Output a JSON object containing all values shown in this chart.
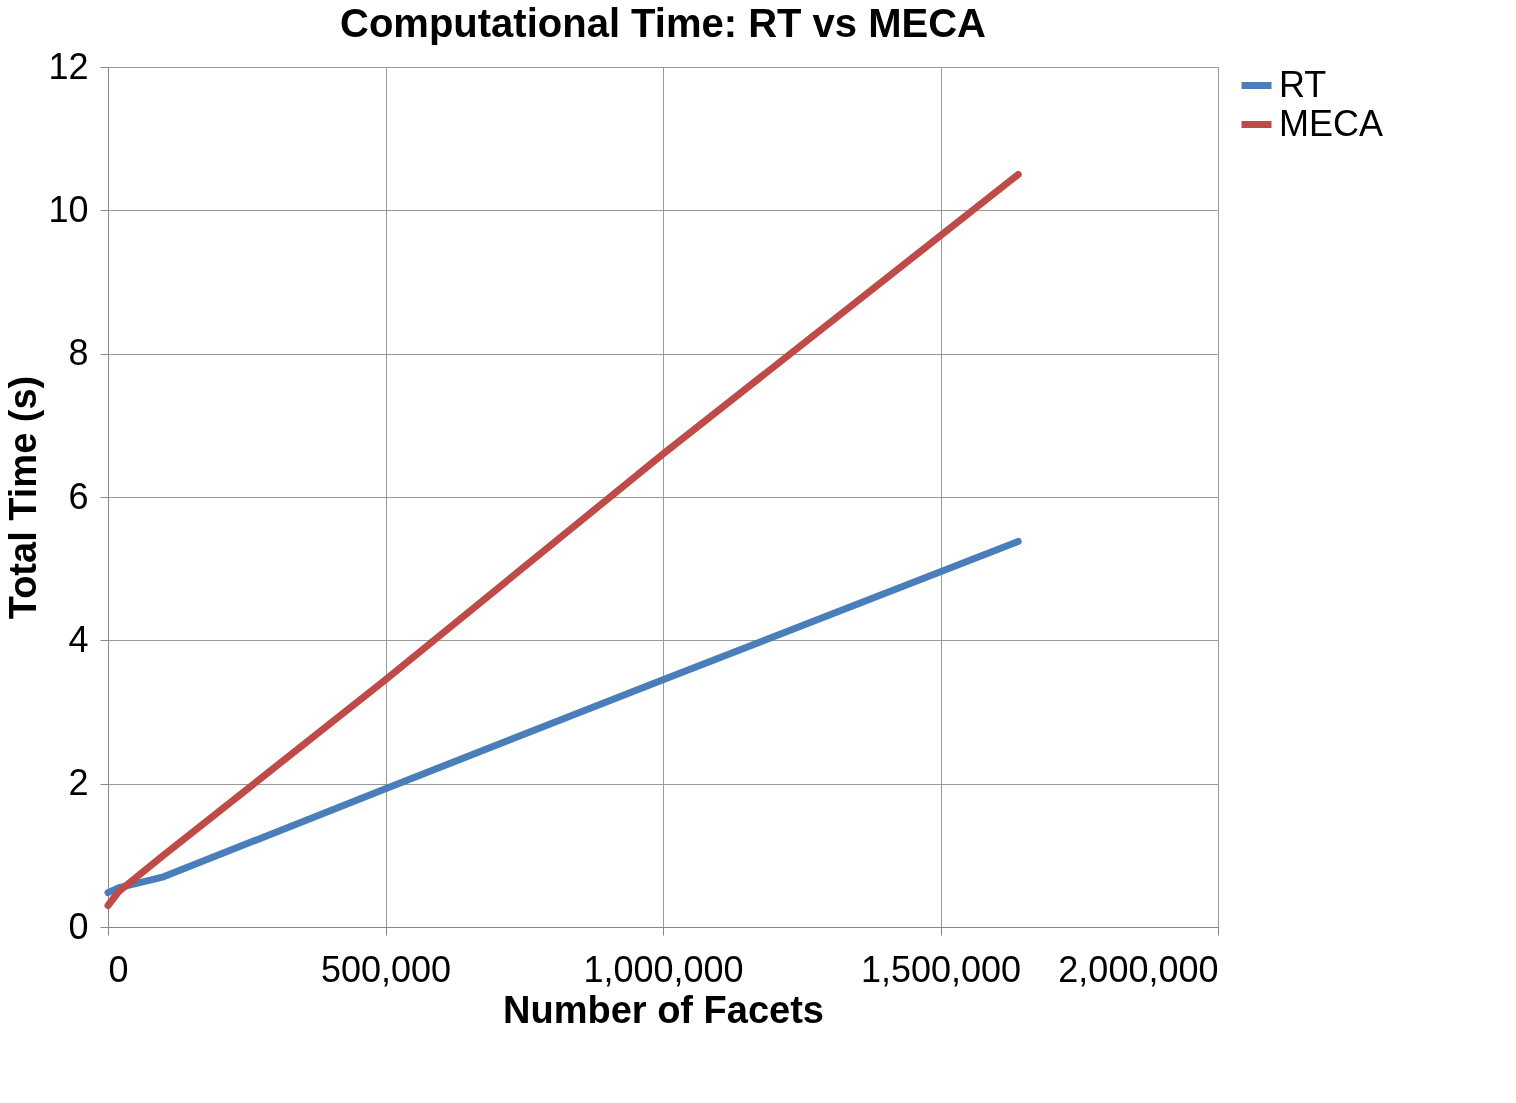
{
  "chart_data": {
    "type": "line",
    "title": "Computational Time: RT vs MECA",
    "xlabel": "Number of Facets",
    "ylabel": "Total Time (s)",
    "x": [
      0,
      20000,
      100000,
      500000,
      1000000,
      1640000
    ],
    "series": [
      {
        "name": "RT",
        "color": "#4a7ebb",
        "values": [
          0.48,
          0.55,
          0.7,
          1.93,
          3.45,
          5.38
        ]
      },
      {
        "name": "MECA",
        "color": "#be4b48",
        "values": [
          0.3,
          0.5,
          1.0,
          3.45,
          6.6,
          10.5
        ]
      }
    ],
    "xlim": [
      0,
      2000000
    ],
    "xticks": [
      0,
      {
        "value": 500000,
        "label": "500,000"
      },
      {
        "value": 1000000,
        "label": "1,000,000"
      },
      {
        "value": 1500000,
        "label": "1,500,000"
      },
      {
        "value": 2000000,
        "label": "2,000,000"
      }
    ],
    "ylim": [
      0,
      12
    ],
    "yticks": [
      0,
      2,
      4,
      6,
      8,
      10,
      12
    ],
    "grid": true,
    "legend": "right",
    "marker": "none",
    "line_style": "solid"
  }
}
